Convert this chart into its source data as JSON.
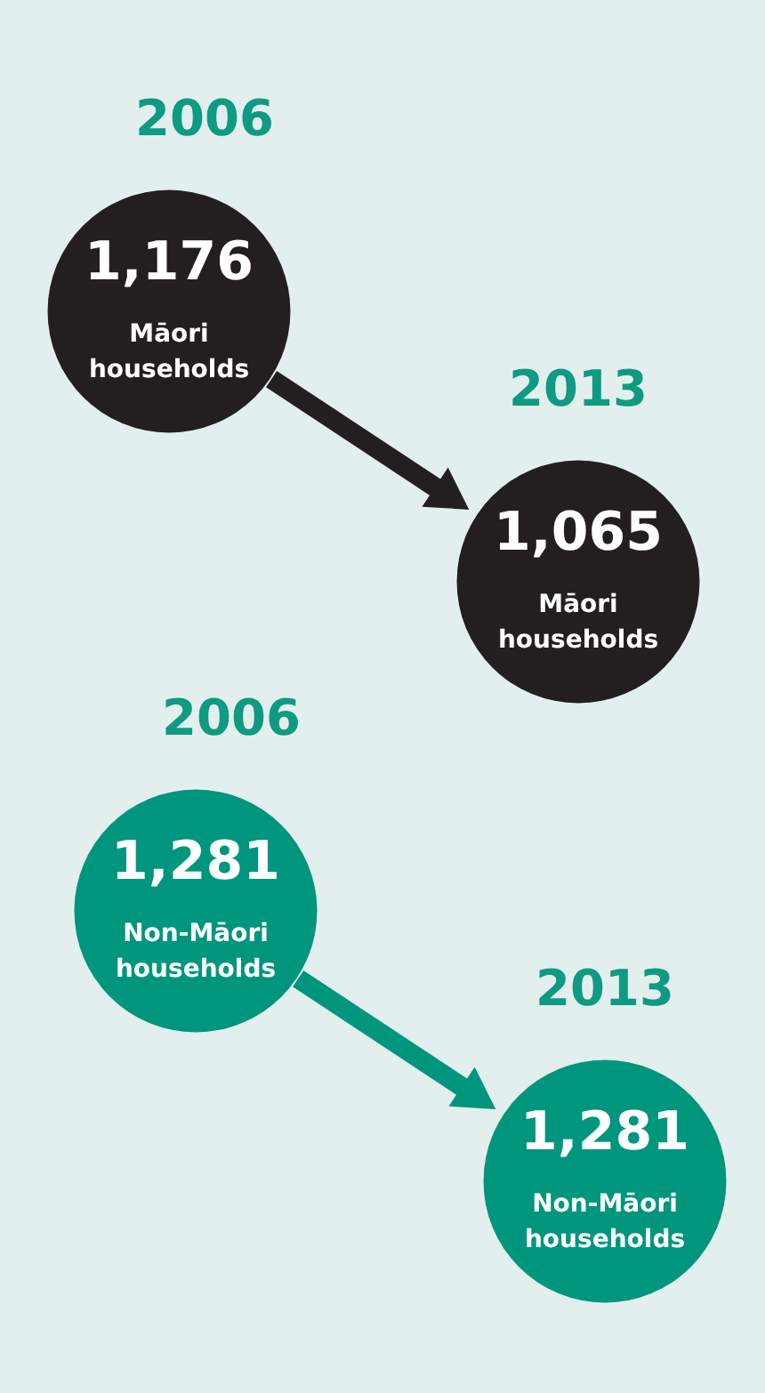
{
  "chart_data": {
    "type": "other",
    "categories": [
      "2006",
      "2013"
    ],
    "series": [
      {
        "name": "Māori households",
        "color": "#231f20",
        "values": [
          1176,
          1065
        ],
        "value_labels": [
          "1,176",
          "1,065"
        ]
      },
      {
        "name": "Non-Māori households",
        "color": "#00967e",
        "values": [
          1281,
          1281
        ],
        "value_labels": [
          "1,281",
          "1,281"
        ]
      }
    ]
  }
}
